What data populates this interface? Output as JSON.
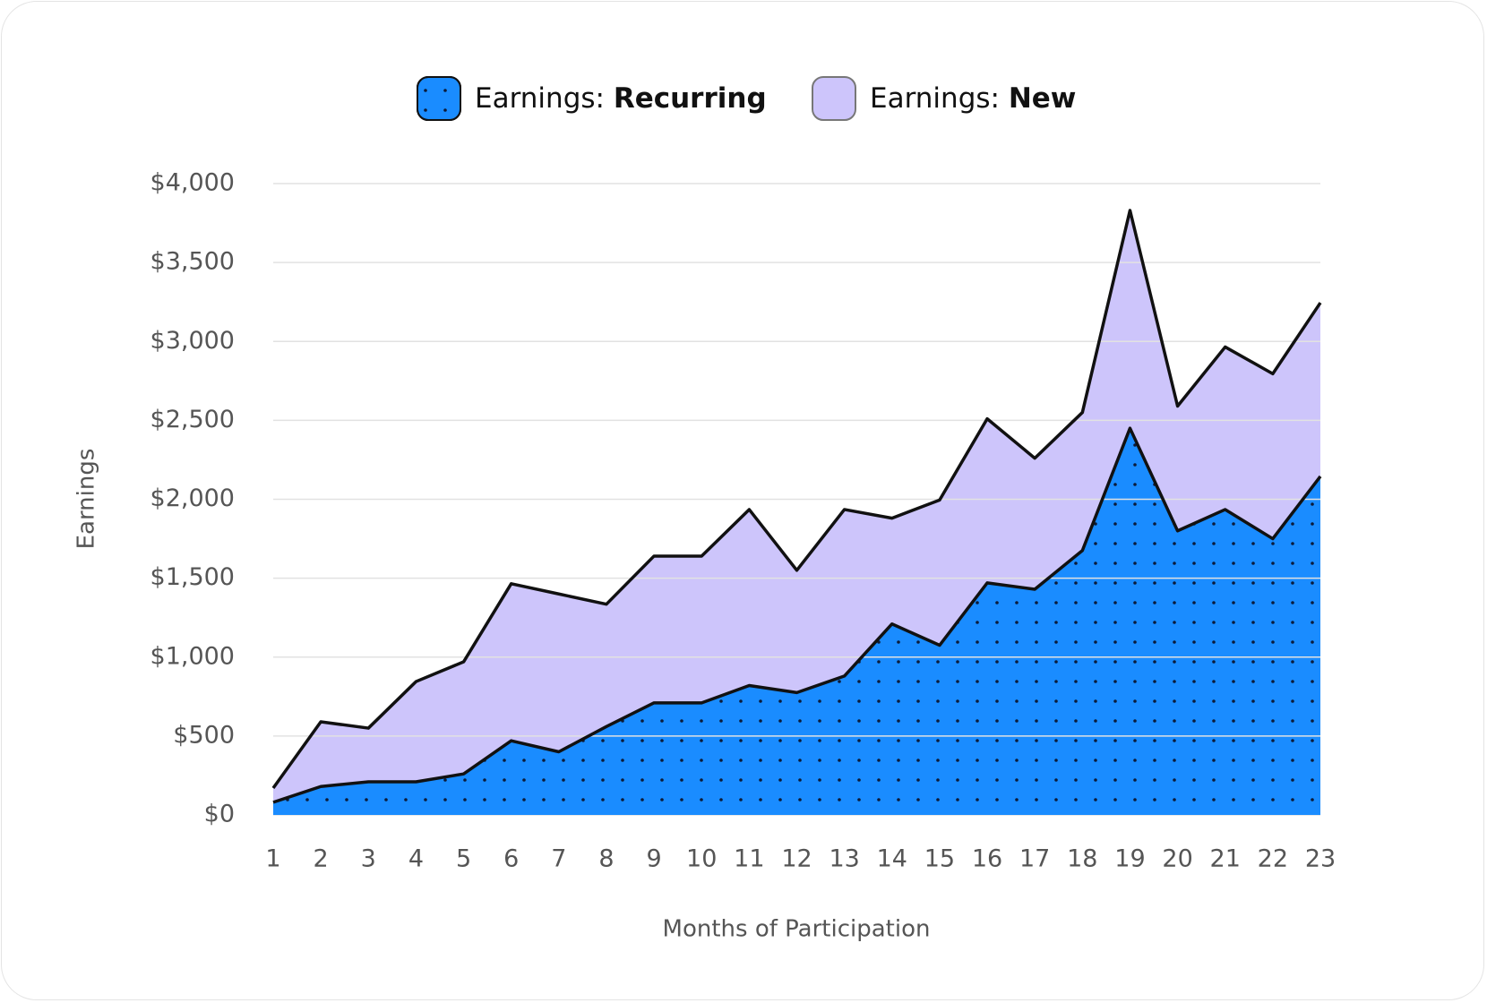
{
  "chart_data": {
    "type": "stacked-area",
    "x": [
      1,
      2,
      3,
      4,
      5,
      6,
      7,
      8,
      9,
      10,
      11,
      12,
      13,
      14,
      15,
      16,
      17,
      18,
      19,
      20,
      21,
      22,
      23
    ],
    "xlim": [
      1,
      23
    ],
    "x_label": "Months of Participation",
    "y_label": "Earnings",
    "ylim": [
      0,
      4000
    ],
    "yticks": [
      {
        "value": 0,
        "label": "$0"
      },
      {
        "value": 500,
        "label": "$500"
      },
      {
        "value": 1000,
        "label": "$1,000"
      },
      {
        "value": 1500,
        "label": "$1,500"
      },
      {
        "value": 2000,
        "label": "$2,000"
      },
      {
        "value": 2500,
        "label": "$2,500"
      },
      {
        "value": 3000,
        "label": "$3,000"
      },
      {
        "value": 3500,
        "label": "$3,500"
      },
      {
        "value": 4000,
        "label": "$4,000"
      }
    ],
    "grid": true,
    "legend": "top",
    "series": [
      {
        "name": "Earnings: Recurring",
        "color": "#1a8cff",
        "pattern": "dots",
        "values": [
          80,
          180,
          210,
          210,
          260,
          470,
          400,
          560,
          710,
          710,
          820,
          775,
          880,
          1210,
          1075,
          1470,
          1430,
          1675,
          2450,
          1800,
          1935,
          1750,
          2145
        ]
      },
      {
        "name": "Earnings: New",
        "color": "#cdc5fb",
        "values": [
          90,
          410,
          340,
          635,
          710,
          995,
          1000,
          775,
          930,
          930,
          1115,
          775,
          1055,
          670,
          920,
          1040,
          830,
          875,
          1380,
          790,
          1030,
          1045,
          1100
        ]
      }
    ]
  }
}
